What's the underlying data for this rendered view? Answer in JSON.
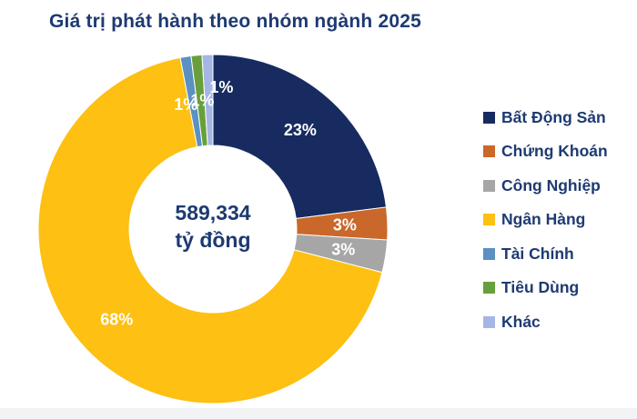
{
  "title": "Giá trị phát hành theo nhóm ngành 2025",
  "chart_data": {
    "type": "pie",
    "subtype": "donut",
    "title": "Giá trị phát hành theo nhóm ngành 2025",
    "center_label": {
      "value": "589,334",
      "unit": "tỷ đồng"
    },
    "start_angle_deg": 0,
    "direction": "clockwise",
    "legend_position": "right",
    "grid": false,
    "segments": [
      {
        "label": "Bất Động Sản",
        "value_pct": 23,
        "data_label": "23%",
        "color": "#172b60"
      },
      {
        "label": "Chứng Khoán",
        "value_pct": 3,
        "data_label": "3%",
        "color": "#c9682a"
      },
      {
        "label": "Công Nghiệp",
        "value_pct": 3,
        "data_label": "3%",
        "color": "#a6a6a6"
      },
      {
        "label": "Ngân Hàng",
        "value_pct": 68,
        "data_label": "68%",
        "color": "#fdc013"
      },
      {
        "label": "Tài Chính",
        "value_pct": 1,
        "data_label": "1%",
        "color": "#5b90c0"
      },
      {
        "label": "Tiêu Dùng",
        "value_pct": 1,
        "data_label": "1%",
        "color": "#67a03b"
      },
      {
        "label": "Khác",
        "value_pct": 1,
        "data_label": "1%",
        "color": "#a5b6e4"
      }
    ]
  },
  "colors": {
    "title_text": "#1e3a72",
    "center_text": "#1e3a72",
    "legend_text": "#1e3a72",
    "pct_label_text": "#ffffff",
    "background": "#ffffff",
    "bottom_strip": "#f1f3f4"
  }
}
